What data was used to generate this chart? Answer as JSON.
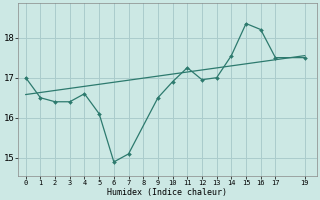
{
  "xlabel": "Humidex (Indice chaleur)",
  "ylabel": "",
  "bg_color": "#cce8e4",
  "grid_color": "#aacccc",
  "line_color": "#2d7a6e",
  "xlim": [
    -0.5,
    19.8
  ],
  "ylim": [
    14.55,
    18.85
  ],
  "xticks": [
    0,
    1,
    2,
    3,
    4,
    5,
    6,
    7,
    8,
    9,
    10,
    11,
    12,
    13,
    14,
    15,
    16,
    17,
    19
  ],
  "yticks": [
    15,
    16,
    17,
    18
  ],
  "data_x": [
    0,
    1,
    2,
    3,
    4,
    5,
    6,
    7,
    9,
    10,
    11,
    12,
    13,
    14,
    15,
    16,
    17,
    19
  ],
  "data_y": [
    17.0,
    16.5,
    16.4,
    16.4,
    16.6,
    16.1,
    14.9,
    15.1,
    16.5,
    16.9,
    17.25,
    16.95,
    17.0,
    17.55,
    18.35,
    18.2,
    17.5,
    17.5
  ],
  "trend_x": [
    0,
    19
  ],
  "trend_y": [
    16.58,
    17.55
  ]
}
